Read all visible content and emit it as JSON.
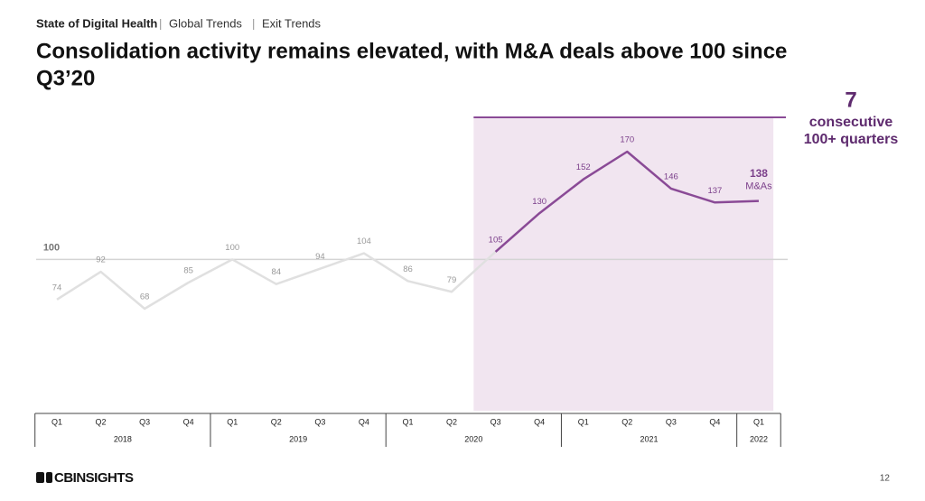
{
  "header": {
    "section": "State of Digital Health",
    "crumbs": [
      "Global Trends",
      "Exit Trends"
    ]
  },
  "chart_data": {
    "type": "line",
    "title": [
      "Consolidation activity remains elevated, with M&A deals above 100 since",
      "Q3’20"
    ],
    "groups": [
      {
        "name": "2018",
        "categories": [
          "Q1",
          "Q2",
          "Q3",
          "Q4"
        ]
      },
      {
        "name": "2019",
        "categories": [
          "Q1",
          "Q2",
          "Q3",
          "Q4"
        ]
      },
      {
        "name": "2020",
        "categories": [
          "Q1",
          "Q2",
          "Q3",
          "Q4"
        ]
      },
      {
        "name": "2021",
        "categories": [
          "Q1",
          "Q2",
          "Q3",
          "Q4"
        ]
      },
      {
        "name": "2022",
        "categories": [
          "Q1"
        ]
      }
    ],
    "values": [
      74,
      92,
      68,
      85,
      100,
      84,
      94,
      104,
      86,
      79,
      105,
      130,
      152,
      170,
      146,
      137,
      138
    ],
    "last_value_unit": "M&As",
    "reference_line": 100,
    "colors": {
      "base": "#e0e0e0",
      "highlight": "#8a4a96",
      "shade": "#f1e5f0"
    },
    "annotation": {
      "count": 7,
      "text": [
        "consecutive",
        "100+ quarters"
      ]
    }
  },
  "footer": {
    "brand": "CBINSIGHTS",
    "page": "12"
  }
}
